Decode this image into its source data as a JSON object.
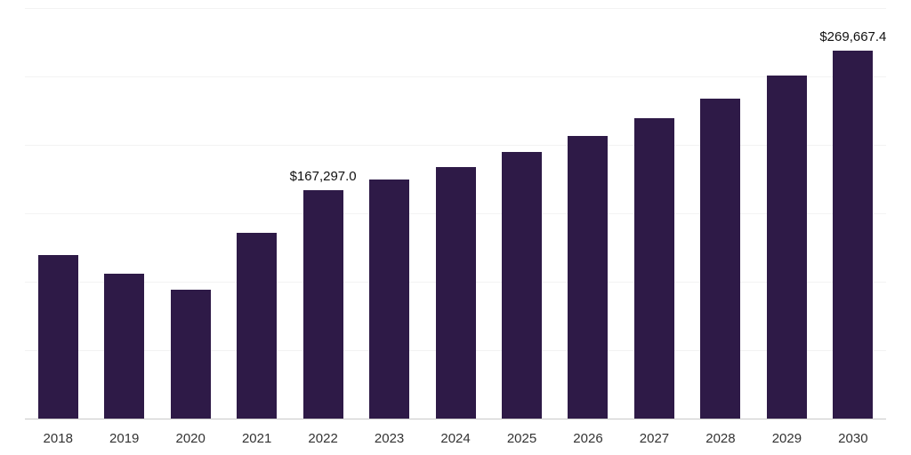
{
  "chart_data": {
    "type": "bar",
    "title": "",
    "xlabel": "",
    "ylabel": "",
    "categories": [
      "2018",
      "2019",
      "2020",
      "2021",
      "2022",
      "2023",
      "2024",
      "2025",
      "2026",
      "2027",
      "2028",
      "2029",
      "2030"
    ],
    "values": [
      119800,
      106000,
      94500,
      136300,
      167297.0,
      175000,
      184500,
      195300,
      206700,
      220000,
      234600,
      251100,
      269667.4
    ],
    "data_labels": [
      "",
      "",
      "",
      "",
      "$167,297.0",
      "",
      "",
      "",
      "",
      "",
      "",
      "",
      "$269,667.4"
    ],
    "ylim": [
      0,
      300000
    ],
    "gridline_step": 50000,
    "grid": "horizontal-light",
    "legend": "none",
    "bar_color": "#2e1a47",
    "axis_line_color": "#c9c9c9",
    "gridline_color": "#f3f3f3",
    "label_color": "#111111",
    "tick_label_color": "#333333"
  }
}
